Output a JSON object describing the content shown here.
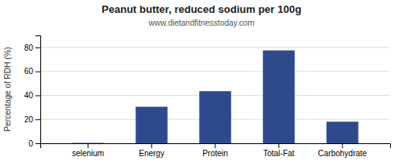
{
  "chart_data": {
    "type": "bar",
    "title": "Peanut butter, reduced sodium per 100g",
    "subtitle": "www.dietandfitnesstoday.com",
    "ylabel": "Percentage of RDH (%)",
    "categories": [
      "selenium",
      "Energy",
      "Protein",
      "Total-Fat",
      "Carbohydrate"
    ],
    "values": [
      0.3,
      30.5,
      43.5,
      77.5,
      18.0
    ],
    "color": "#2E4A8C",
    "ylim": [
      0,
      90
    ],
    "yticks": [
      0,
      20,
      40,
      60,
      80
    ],
    "grid": true
  }
}
